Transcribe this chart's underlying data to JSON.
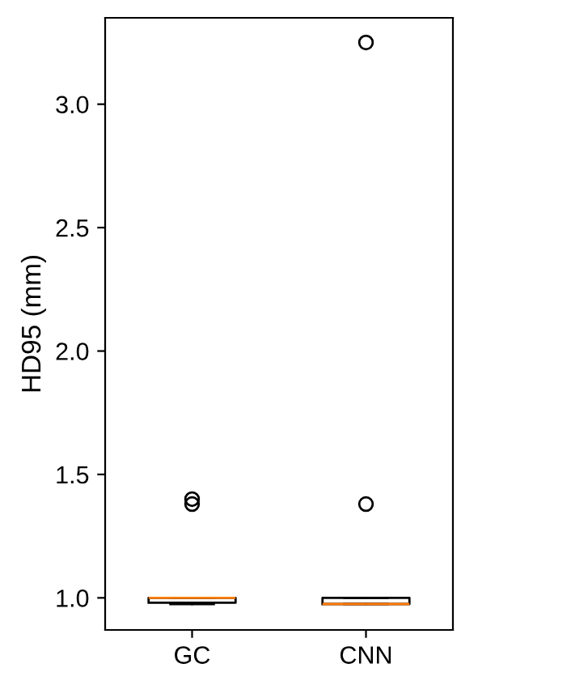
{
  "chart_data": {
    "type": "box",
    "ylabel": "HD95 (mm)",
    "categories": [
      "GC",
      "CNN"
    ],
    "boxes": [
      {
        "low": 0.975,
        "q1": 0.98,
        "median": 1.0,
        "q3": 1.0,
        "high": 1.0,
        "outliers": [
          1.38,
          1.4
        ]
      },
      {
        "low": 0.975,
        "q1": 0.975,
        "median": 0.975,
        "q3": 1.0,
        "high": 1.0,
        "outliers": [
          1.38,
          3.25
        ]
      }
    ],
    "ylim": [
      0.87,
      3.35
    ],
    "yticks": [
      {
        "value": 1.0,
        "label": "1.0"
      },
      {
        "value": 1.5,
        "label": "1.5"
      },
      {
        "value": 2.0,
        "label": "2.0"
      },
      {
        "value": 2.5,
        "label": "2.5"
      },
      {
        "value": 3.0,
        "label": "3.0"
      }
    ],
    "grid": false
  }
}
